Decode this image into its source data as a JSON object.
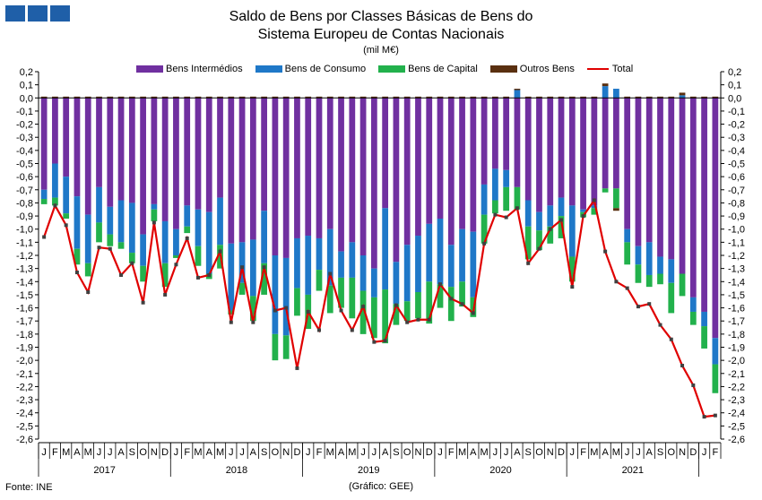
{
  "header": {
    "title_line1": "Saldo de Bens por Classes Básicas de Bens do",
    "title_line2": "Sistema Europeu de Contas Nacionais",
    "unit": "(mil M€)"
  },
  "footer": {
    "source": "Fonte: INE",
    "credit": "(Gráfico: GEE)"
  },
  "colors": {
    "intermedios": "#7030a0",
    "consumo": "#1f78c8",
    "capital": "#22b14c",
    "outros": "#5a3010",
    "total": "#e00000"
  },
  "chart_data": {
    "type": "bar",
    "stacked": true,
    "ylim": [
      -2.6,
      0.2
    ],
    "yticks": [
      "0,2",
      "0,1",
      "0,0",
      "-0,1",
      "-0,2",
      "-0,3",
      "-0,4",
      "-0,5",
      "-0,6",
      "-0,7",
      "-0,8",
      "-0,9",
      "-1,0",
      "-1,1",
      "-1,2",
      "-1,3",
      "-1,4",
      "-1,5",
      "-1,6",
      "-1,7",
      "-1,8",
      "-1,9",
      "-2,0",
      "-2,1",
      "-2,2",
      "-2,3",
      "-2,4",
      "-2,5",
      "-2,6"
    ],
    "legend": [
      "Bens Intermédios",
      "Bens de Consumo",
      "Bens de Capital",
      "Outros Bens",
      "Total"
    ],
    "months": [
      "J",
      "F",
      "M",
      "A",
      "M",
      "J",
      "J",
      "A",
      "S",
      "O",
      "N",
      "D"
    ],
    "years": [
      "2017",
      "2018",
      "2019",
      "2020",
      "2021"
    ],
    "series": [
      {
        "name": "Bens Intermédios",
        "values": [
          -0.7,
          -0.5,
          -0.6,
          -0.75,
          -0.89,
          -0.68,
          -0.83,
          -0.78,
          -0.8,
          -1.04,
          -0.81,
          -0.94,
          -1.0,
          -0.82,
          -0.85,
          -0.87,
          -0.76,
          -1.11,
          -1.1,
          -1.08,
          -0.86,
          -1.2,
          -1.22,
          -1.07,
          -1.05,
          -1.07,
          -1.0,
          -1.17,
          -1.1,
          -1.2,
          -1.3,
          -0.84,
          -1.25,
          -1.12,
          -1.05,
          -0.96,
          -0.92,
          -1.12,
          -1.0,
          -1.02,
          -0.66,
          -0.54,
          -0.55,
          -0.68,
          -0.78,
          -0.87,
          -0.82,
          -0.76,
          -0.82,
          -0.85,
          -0.82,
          -0.69,
          -0.69,
          -1.0,
          -1.13,
          -1.1,
          -1.21,
          -1.23,
          -1.34,
          -1.52,
          -1.63,
          -1.83
        ]
      },
      {
        "name": "Bens de Consumo",
        "values": [
          -0.07,
          -0.26,
          -0.28,
          -0.4,
          -0.37,
          -0.27,
          -0.21,
          -0.32,
          -0.38,
          -0.24,
          -0.04,
          -0.32,
          -0.2,
          -0.16,
          -0.28,
          -0.47,
          -0.36,
          -0.51,
          -0.31,
          -0.43,
          -0.4,
          -0.6,
          -0.59,
          -0.38,
          -0.45,
          -0.24,
          -0.43,
          -0.2,
          -0.27,
          -0.27,
          -0.22,
          -0.62,
          -0.32,
          -0.43,
          -0.43,
          -0.44,
          -0.5,
          -0.32,
          -0.4,
          -0.5,
          -0.23,
          -0.24,
          -0.13,
          0.06,
          -0.2,
          -0.14,
          -0.16,
          -0.14,
          -0.39,
          -0.02,
          -0.02,
          0.09,
          0.07,
          -0.1,
          -0.14,
          -0.25,
          -0.13,
          -0.18,
          0.02,
          -0.11,
          -0.11,
          -0.2
        ]
      },
      {
        "name": "Bens de Capital",
        "values": [
          -0.04,
          -0.06,
          -0.04,
          -0.12,
          -0.1,
          -0.15,
          -0.09,
          -0.05,
          -0.08,
          -0.12,
          -0.09,
          -0.18,
          -0.02,
          -0.05,
          -0.15,
          -0.04,
          -0.18,
          -0.03,
          -0.09,
          -0.19,
          -0.24,
          -0.2,
          -0.18,
          -0.21,
          -0.26,
          -0.16,
          -0.21,
          -0.23,
          -0.31,
          -0.33,
          -0.31,
          -0.41,
          -0.16,
          -0.15,
          -0.2,
          -0.32,
          -0.18,
          -0.26,
          -0.19,
          -0.15,
          -0.22,
          -0.1,
          -0.18,
          -0.17,
          -0.25,
          -0.15,
          -0.13,
          -0.17,
          -0.19,
          -0.04,
          -0.05,
          -0.03,
          -0.15,
          -0.17,
          -0.14,
          -0.09,
          -0.08,
          -0.23,
          -0.17,
          -0.1,
          -0.17,
          -0.22
        ]
      },
      {
        "name": "Outros Bens",
        "values": [
          0.01,
          0.01,
          0.01,
          0.01,
          0.01,
          0.01,
          0.01,
          0.01,
          0.01,
          0.01,
          0.01,
          0.01,
          0.01,
          0.01,
          0.01,
          0.01,
          0.01,
          0.01,
          0.01,
          0.01,
          0.01,
          0.01,
          0.01,
          0.01,
          0.01,
          0.01,
          0.01,
          0.01,
          0.01,
          0.01,
          0.01,
          0.01,
          0.01,
          0.01,
          0.01,
          0.01,
          0.01,
          0.01,
          0.01,
          0.01,
          0.01,
          0.01,
          0.01,
          0.01,
          0.01,
          0.01,
          0.01,
          0.01,
          0.01,
          0.01,
          0.01,
          0.02,
          -0.02,
          0.01,
          0.01,
          0.01,
          0.01,
          0.01,
          0.02,
          0.01,
          0.01,
          0.01
        ]
      },
      {
        "name": "Total",
        "values": [
          -1.06,
          -0.82,
          -0.97,
          -1.33,
          -1.48,
          -1.14,
          -1.15,
          -1.35,
          -1.26,
          -1.56,
          -0.95,
          -1.5,
          -1.27,
          -1.07,
          -1.37,
          -1.35,
          -1.17,
          -1.71,
          -1.29,
          -1.71,
          -1.29,
          -1.62,
          -1.6,
          -2.06,
          -1.63,
          -1.77,
          -1.34,
          -1.62,
          -1.77,
          -1.59,
          -1.86,
          -1.85,
          -1.58,
          -1.71,
          -1.69,
          -1.69,
          -1.42,
          -1.53,
          -1.57,
          -1.64,
          -1.11,
          -0.89,
          -0.91,
          -0.84,
          -1.26,
          -1.15,
          -1.0,
          -0.93,
          -1.44,
          -0.9,
          -0.78,
          -1.17,
          -1.4,
          -1.45,
          -1.59,
          -1.57,
          -1.73,
          -1.84,
          -2.04,
          -2.19,
          -2.43,
          -2.42
        ]
      }
    ]
  }
}
